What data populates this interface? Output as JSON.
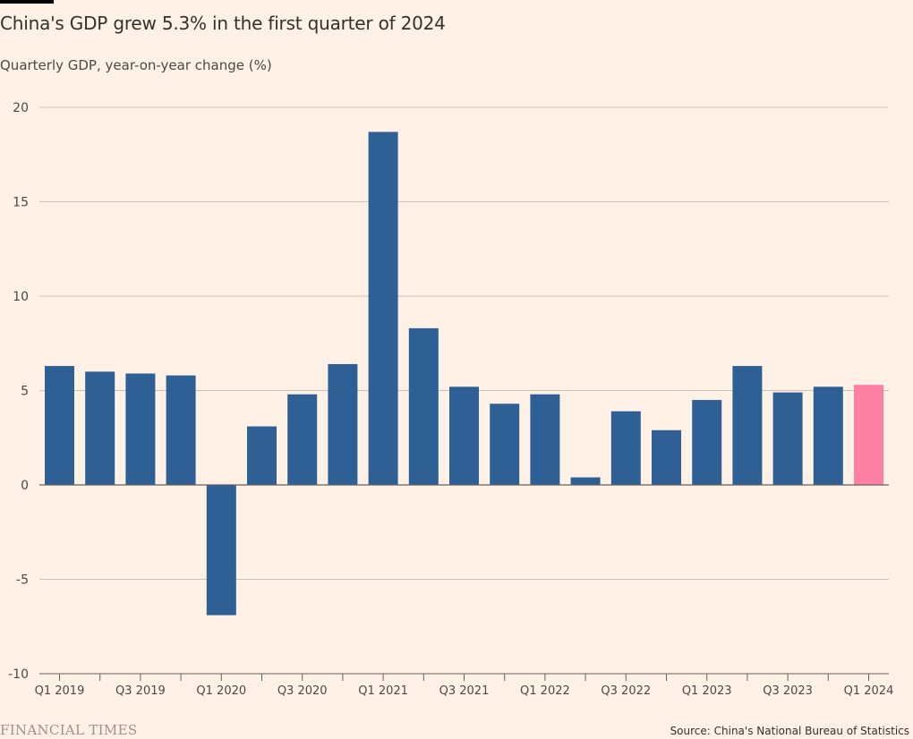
{
  "chart_data": {
    "type": "bar",
    "title": "China's GDP grew 5.3% in the first quarter of 2024",
    "subtitle": "Quarterly GDP, year-on-year change (%)",
    "xlabel": "",
    "ylabel": "",
    "ylim": [
      -10,
      20
    ],
    "yticks": [
      20,
      15,
      10,
      5,
      0,
      -5,
      -10
    ],
    "grid": true,
    "categories": [
      "Q1 2019",
      "Q2 2019",
      "Q3 2019",
      "Q4 2019",
      "Q1 2020",
      "Q2 2020",
      "Q3 2020",
      "Q4 2020",
      "Q1 2021",
      "Q2 2021",
      "Q3 2021",
      "Q4 2021",
      "Q1 2022",
      "Q2 2022",
      "Q3 2022",
      "Q4 2022",
      "Q1 2023",
      "Q2 2023",
      "Q3 2023",
      "Q4 2023",
      "Q1 2024"
    ],
    "xtick_labels": [
      "Q1 2019",
      "",
      "Q3 2019",
      "",
      "Q1 2020",
      "",
      "Q3 2020",
      "",
      "Q1 2021",
      "",
      "Q3 2021",
      "",
      "Q1 2022",
      "",
      "Q3 2022",
      "",
      "Q1 2023",
      "",
      "Q3 2023",
      "",
      "Q1 2024"
    ],
    "series": [
      {
        "name": "Quarterly GDP, year-on-year change (%)",
        "values": [
          6.3,
          6.0,
          5.9,
          5.8,
          -6.9,
          3.1,
          4.8,
          6.4,
          18.7,
          8.3,
          5.2,
          4.3,
          4.8,
          0.4,
          3.9,
          2.9,
          4.5,
          6.3,
          4.9,
          5.2,
          5.3
        ],
        "color": "#2e6096",
        "highlight_index": 20,
        "highlight_color": "#ff7fa5"
      }
    ]
  },
  "footer": {
    "brand": "FINANCIAL TIMES",
    "source": "Source: China's National Bureau of Statistics"
  },
  "colors": {
    "background": "#fff1e5",
    "bar": "#2e6096",
    "highlight": "#ff7fa5",
    "grid": "#ccc1b7",
    "axis": "#66605c"
  }
}
